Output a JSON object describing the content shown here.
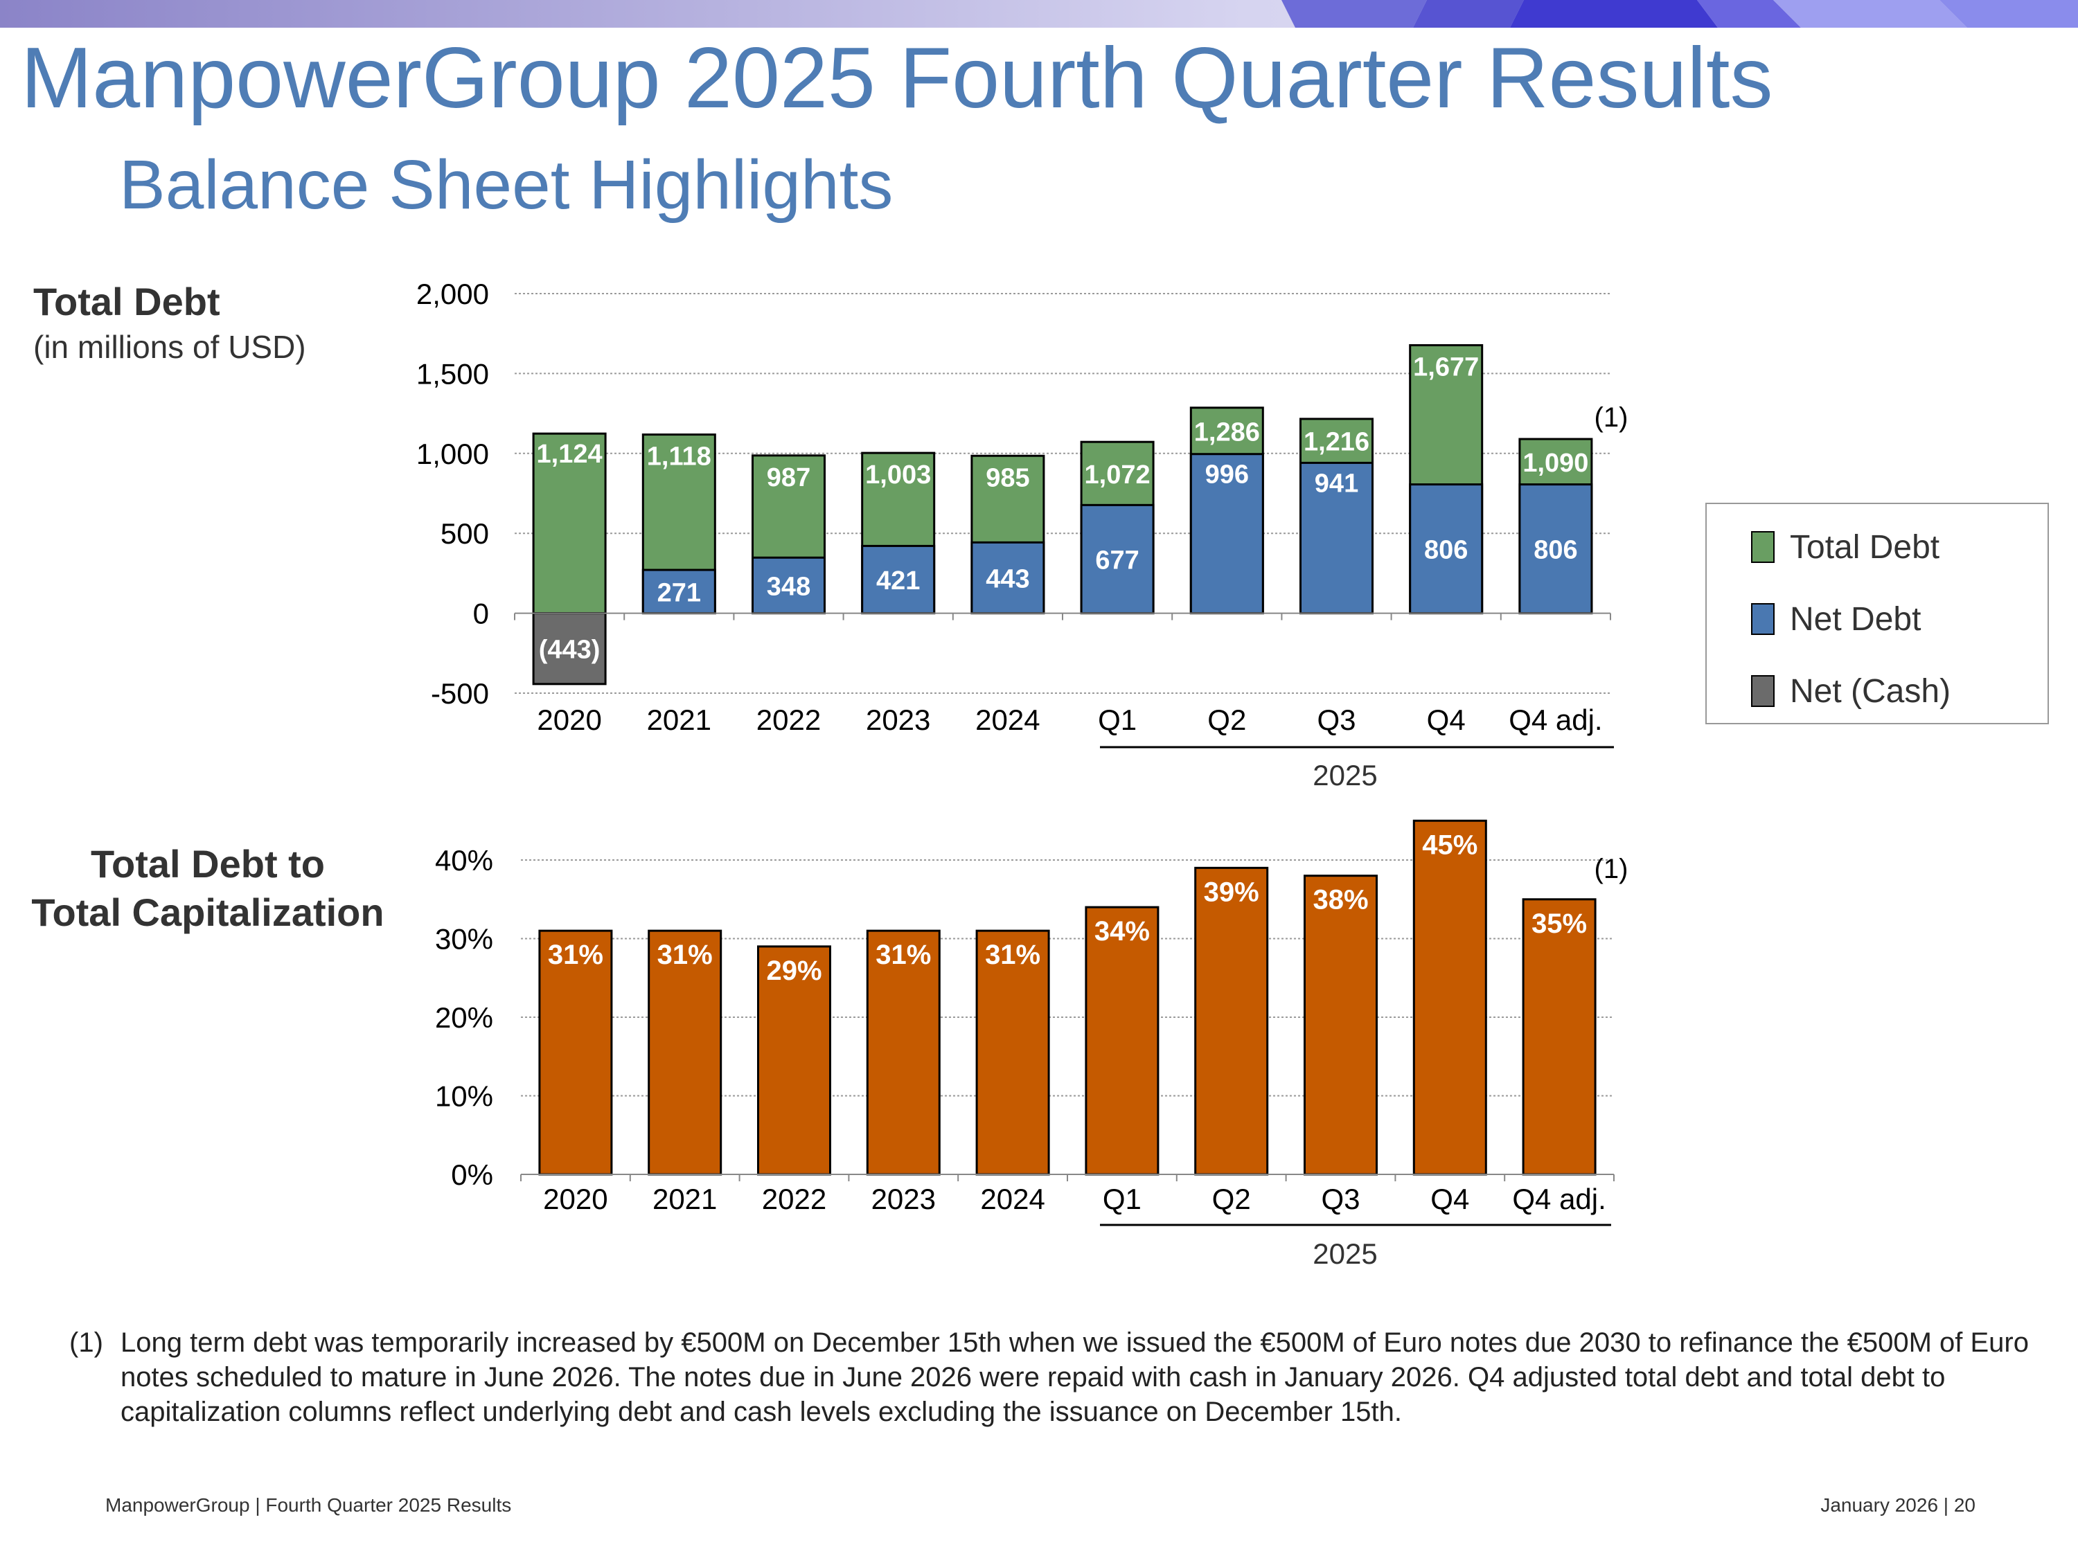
{
  "title": "ManpowerGroup 2025 Fourth Quarter Results",
  "subtitle": "Balance Sheet Highlights",
  "colors": {
    "title": "#4f7db5",
    "total_debt": "#699e62",
    "net_debt": "#4a78b1",
    "net_cash": "#6b6b6b",
    "capitalization": "#c55a00"
  },
  "chart_data": [
    {
      "type": "bar",
      "stacking": "overlay",
      "title": "Total Debt",
      "unit_label": "(in millions of USD)",
      "categories": [
        "2020",
        "2021",
        "2022",
        "2023",
        "2024",
        "Q1",
        "Q2",
        "Q3",
        "Q4",
        "Q4 adj."
      ],
      "group_label": "2025",
      "ylim": [
        -500,
        2000
      ],
      "yticks": [
        "2,000",
        "1,500",
        "1,000",
        "500",
        "0",
        "-500"
      ],
      "ytick_values": [
        2000,
        1500,
        1000,
        500,
        0,
        -500
      ],
      "grid": true,
      "legend_position": "right",
      "footnote_marker": "(1)",
      "series": [
        {
          "name": "Total Debt",
          "values": [
            1124,
            1118,
            987,
            1003,
            985,
            1072,
            1286,
            1216,
            1677,
            1090
          ],
          "labels": [
            "1,124",
            "1,118",
            "987",
            "1,003",
            "985",
            "1,072",
            "1,286",
            "1,216",
            "1,677",
            "1,090"
          ]
        },
        {
          "name": "Net Debt",
          "values": [
            null,
            271,
            348,
            421,
            443,
            677,
            996,
            941,
            806,
            806
          ],
          "labels": [
            "",
            "271",
            "348",
            "421",
            "443",
            "677",
            "996",
            "941",
            "806",
            "806"
          ]
        },
        {
          "name": "Net (Cash)",
          "values": [
            -443,
            null,
            null,
            null,
            null,
            null,
            null,
            null,
            null,
            null
          ],
          "labels": [
            "(443)",
            "",
            "",
            "",
            "",
            "",
            "",
            "",
            "",
            ""
          ]
        }
      ]
    },
    {
      "type": "bar",
      "title_lines": [
        "Total Debt to",
        "Total Capitalization"
      ],
      "categories": [
        "2020",
        "2021",
        "2022",
        "2023",
        "2024",
        "Q1",
        "Q2",
        "Q3",
        "Q4",
        "Q4 adj."
      ],
      "group_label": "2025",
      "ylim": [
        0,
        40
      ],
      "yticks": [
        "40%",
        "30%",
        "20%",
        "10%",
        "0%"
      ],
      "ytick_values": [
        40,
        30,
        20,
        10,
        0
      ],
      "grid": true,
      "footnote_marker": "(1)",
      "series": [
        {
          "name": "Total Debt to Total Capitalization",
          "values": [
            31,
            31,
            29,
            31,
            31,
            34,
            39,
            38,
            45,
            35
          ],
          "labels": [
            "31%",
            "31%",
            "29%",
            "31%",
            "31%",
            "34%",
            "39%",
            "38%",
            "45%",
            "35%"
          ]
        }
      ]
    }
  ],
  "legend": {
    "items": [
      "Total Debt",
      "Net Debt",
      "Net (Cash)"
    ]
  },
  "footnote": {
    "marker": "(1)",
    "text": "Long term debt was temporarily increased by €500M on December 15th when we issued the €500M of Euro notes due 2030 to refinance the €500M of Euro notes scheduled to mature in June 2026. The notes due in June 2026 were repaid with cash in January 2026. Q4 adjusted total debt and total debt to capitalization columns reflect underlying debt and cash levels excluding the issuance on December 15th."
  },
  "footer": {
    "left": "ManpowerGroup  |  Fourth Quarter 2025 Results",
    "right": "January 2026   |   20"
  }
}
